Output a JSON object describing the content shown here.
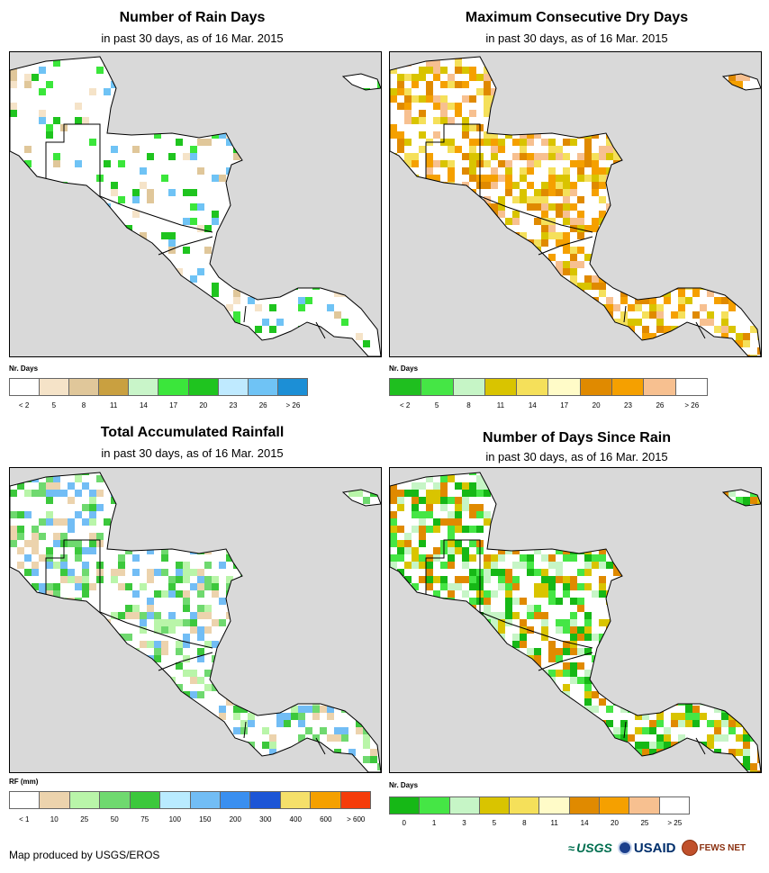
{
  "panels": [
    {
      "title": "Number of Rain Days",
      "subtitle": "in past 30 days, as of 16 Mar. 2015",
      "unit": "Nr. Days",
      "legend_colors": [
        "#ffffff",
        "#f5e3c8",
        "#e0c79a",
        "#c9a040",
        "#c9f5c9",
        "#3be63b",
        "#1fc41f",
        "#bfeaff",
        "#6fc3f5",
        "#1c8fd6"
      ],
      "legend_labels": [
        "< 2",
        "5",
        "8",
        "11",
        "14",
        "17",
        "20",
        "23",
        "26",
        "> 26"
      ]
    },
    {
      "title": "Maximum Consecutive Dry Days",
      "subtitle": "in past 30 days, as of 16 Mar. 2015",
      "unit": "Nr. Days",
      "legend_colors": [
        "#1fbf1f",
        "#45e645",
        "#c6f5c6",
        "#d9c400",
        "#f5e05a",
        "#fffbc8",
        "#e08a00",
        "#f5a000",
        "#f7c090",
        "#ffffff"
      ],
      "legend_labels": [
        "< 2",
        "5",
        "8",
        "11",
        "14",
        "17",
        "20",
        "23",
        "26",
        "> 26"
      ]
    },
    {
      "title": "Total Accumulated Rainfall",
      "subtitle": "in past 30 days, as of 16 Mar. 2015",
      "unit": "RF (mm)",
      "legend_colors": [
        "#ffffff",
        "#ecd3ad",
        "#b9f5a9",
        "#6fd96f",
        "#3cc83c",
        "#b9ebff",
        "#72bdf5",
        "#3a8ff0",
        "#1c55d6",
        "#f5e06a",
        "#f5a000",
        "#f53c0a"
      ],
      "legend_labels": [
        "< 1",
        "10",
        "25",
        "50",
        "75",
        "100",
        "150",
        "200",
        "300",
        "400",
        "600",
        "> 600"
      ]
    },
    {
      "title": "Number of Days Since Rain",
      "subtitle": "in past 30 days, as of 16 Mar. 2015",
      "unit": "Nr. Days",
      "legend_colors": [
        "#16b816",
        "#45e645",
        "#c6f5c6",
        "#d9c400",
        "#f5e05a",
        "#fffbc8",
        "#e08a00",
        "#f5a000",
        "#f7c090",
        "#ffffff"
      ],
      "legend_labels": [
        "0",
        "1",
        "3",
        "5",
        "8",
        "11",
        "14",
        "20",
        "25",
        "> 25"
      ]
    }
  ],
  "footer": "Map produced by USGS/EROS",
  "logos": {
    "usgs": "USGS",
    "usaid": "USAID",
    "fewsnet": "FEWS NET"
  }
}
